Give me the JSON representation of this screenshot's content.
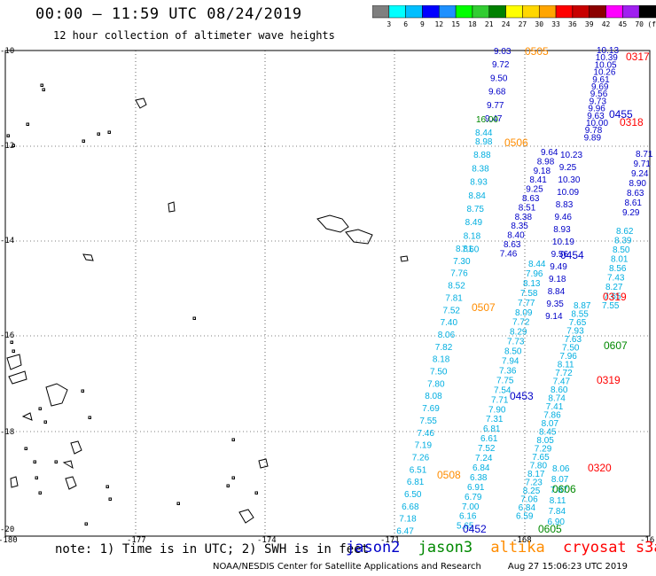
{
  "header": {
    "title": "00:00 – 11:59 UTC 08/24/2019",
    "subtitle": "12 hour collection of altimeter wave heights"
  },
  "colorbar": {
    "colors": [
      "#7f7f7f",
      "#00ffff",
      "#00bfff",
      "#0000ff",
      "#1e90ff",
      "#00ff00",
      "#32cd32",
      "#008000",
      "#ffff00",
      "#ffd700",
      "#ffa500",
      "#ff0000",
      "#c80000",
      "#8b0000",
      "#ff00ff",
      "#a020f0",
      "#000000"
    ],
    "labels": [
      "3",
      "6",
      "9",
      "12",
      "15",
      "18",
      "21",
      "24",
      "27",
      "30",
      "33",
      "36",
      "39",
      "42",
      "45",
      "70",
      "(ft)"
    ]
  },
  "axes": {
    "lat_labels": [
      "-10",
      "-12",
      "-14",
      "-16",
      "-18",
      "-20"
    ],
    "lon_labels": [
      "-180",
      "-177",
      "-174",
      "-171",
      "-168",
      "-16"
    ]
  },
  "tracks": {
    "track_a": {
      "color": "#00aee0",
      "values": [
        "8.81",
        "7.30",
        "7.76",
        "8.52",
        "7.81",
        "7.52",
        "7.40",
        "8.06",
        "7.82",
        "8.18",
        "7.50",
        "7.80",
        "8.08",
        "7.69",
        "7.55",
        "7.46",
        "7.19",
        "7.26",
        "6.51",
        "6.81",
        "6.50",
        "6.68",
        "7.18",
        "6.47"
      ]
    },
    "track_b": {
      "color": "#00aee0",
      "values": [
        "8.98",
        "8.88",
        "8.38",
        "8.93",
        "8.84",
        "8.75",
        "8.49",
        "8.18",
        "7.60"
      ]
    },
    "track_b_top": {
      "color": "#0000c8",
      "values": [
        "9.03",
        "9.72",
        "9.50",
        "9.68",
        "9.77",
        "9.47"
      ]
    },
    "track_b_extra": [
      {
        "color": "#008800",
        "value": "16.00"
      },
      {
        "color": "#00aee0",
        "value": "8.44"
      }
    ],
    "track_c": {
      "color": "#00aee0",
      "values": [
        "8.44",
        "7.96",
        "8.13",
        "7.58",
        "7.77",
        "8.09",
        "7.72",
        "8.29",
        "7.73",
        "8.50",
        "7.94",
        "7.36",
        "7.75",
        "7.54",
        "7.71",
        "7.90",
        "7.31",
        "6.81",
        "6.61",
        "7.52",
        "7.24",
        "6.84",
        "6.38",
        "6.91",
        "6.79",
        "7.00",
        "6.16",
        "5.65"
      ]
    },
    "track_d": {
      "color": "#0000c8",
      "values": [
        "9.64",
        "8.98",
        "9.18",
        "8.41",
        "9.25",
        "8.63",
        "8.51",
        "8.38",
        "8.35",
        "8.40",
        "8.63",
        "7.46"
      ]
    },
    "track_d2": {
      "color": "#0000c8",
      "values": [
        "10.23",
        "9.25",
        "10.30",
        "10.09",
        "8.83",
        "9.46",
        "8.93",
        "10.19",
        "9.56",
        "9.49",
        "9.18",
        "8.84",
        "9.35",
        "9.14"
      ]
    },
    "track_e": {
      "color": "#00aee0",
      "values": [
        "8.87",
        "8.55",
        "7.65",
        "7.93",
        "7.63",
        "7.50",
        "7.96",
        "8.11",
        "7.72",
        "7.47",
        "8.60",
        "8.74",
        "7.41",
        "7.86",
        "8.07",
        "8.45",
        "8.05",
        "7.29",
        "7.65",
        "7.80",
        "8.17",
        "7.23",
        "8.25",
        "7.06",
        "6.84",
        "6.59"
      ]
    },
    "track_f": {
      "color": "#0000c8",
      "values": [
        "10.13",
        "10.39",
        "10.05",
        "10.26",
        "9.61",
        "9.69",
        "9.56",
        "9.73",
        "9.96",
        "9.63",
        "10.00",
        "9.78",
        "9.89"
      ]
    },
    "track_g": {
      "color": "#00aee0",
      "values": [
        "8.62",
        "8.39",
        "8.50",
        "8.01",
        "8.56",
        "7.43",
        "8.27",
        "7.65",
        "7.55"
      ]
    },
    "track_g_dark": {
      "color": "#0000c8",
      "values": [
        "9.29",
        "8.61",
        "8.63",
        "8.90",
        "9.24",
        "9.71",
        "8.71"
      ]
    },
    "track_h": {
      "color": "#00aee0",
      "values": [
        "8.06",
        "8.07",
        "7.87",
        "8.11",
        "7.84",
        "6.90"
      ]
    }
  },
  "track_tags": [
    {
      "text": "0505",
      "color": "#ff8c00"
    },
    {
      "text": "0506",
      "color": "#ff8c00"
    },
    {
      "text": "0507",
      "color": "#ff8c00"
    },
    {
      "text": "0508",
      "color": "#ff8c00"
    },
    {
      "text": "0453",
      "color": "#0000c8"
    },
    {
      "text": "0454",
      "color": "#0000c8"
    },
    {
      "text": "0455",
      "color": "#0000c8"
    },
    {
      "text": "0452",
      "color": "#0000c8"
    },
    {
      "text": "0317",
      "color": "#ff0000"
    },
    {
      "text": "0318",
      "color": "#ff0000"
    },
    {
      "text": "0319",
      "color": "#ff0000"
    },
    {
      "text": "0319",
      "color": "#ff0000"
    },
    {
      "text": "0320",
      "color": "#ff0000"
    },
    {
      "text": "0607",
      "color": "#008800"
    },
    {
      "text": "0606",
      "color": "#008800"
    },
    {
      "text": "0605",
      "color": "#008800"
    }
  ],
  "note": "note: 1) Time is in UTC; 2) SWH is in feet",
  "satellites": [
    {
      "name": "jason2",
      "color": "#0000c8"
    },
    {
      "name": "jason3",
      "color": "#008800"
    },
    {
      "name": "altika",
      "color": "#ff8c00"
    },
    {
      "name": "cryosat s3a",
      "color": "#ff0000"
    }
  ],
  "footer": {
    "credit": "NOAA/NESDIS Center for Satellite Applications and Research",
    "timestamp": "Aug 27 15:06:23 UTC 2019"
  }
}
